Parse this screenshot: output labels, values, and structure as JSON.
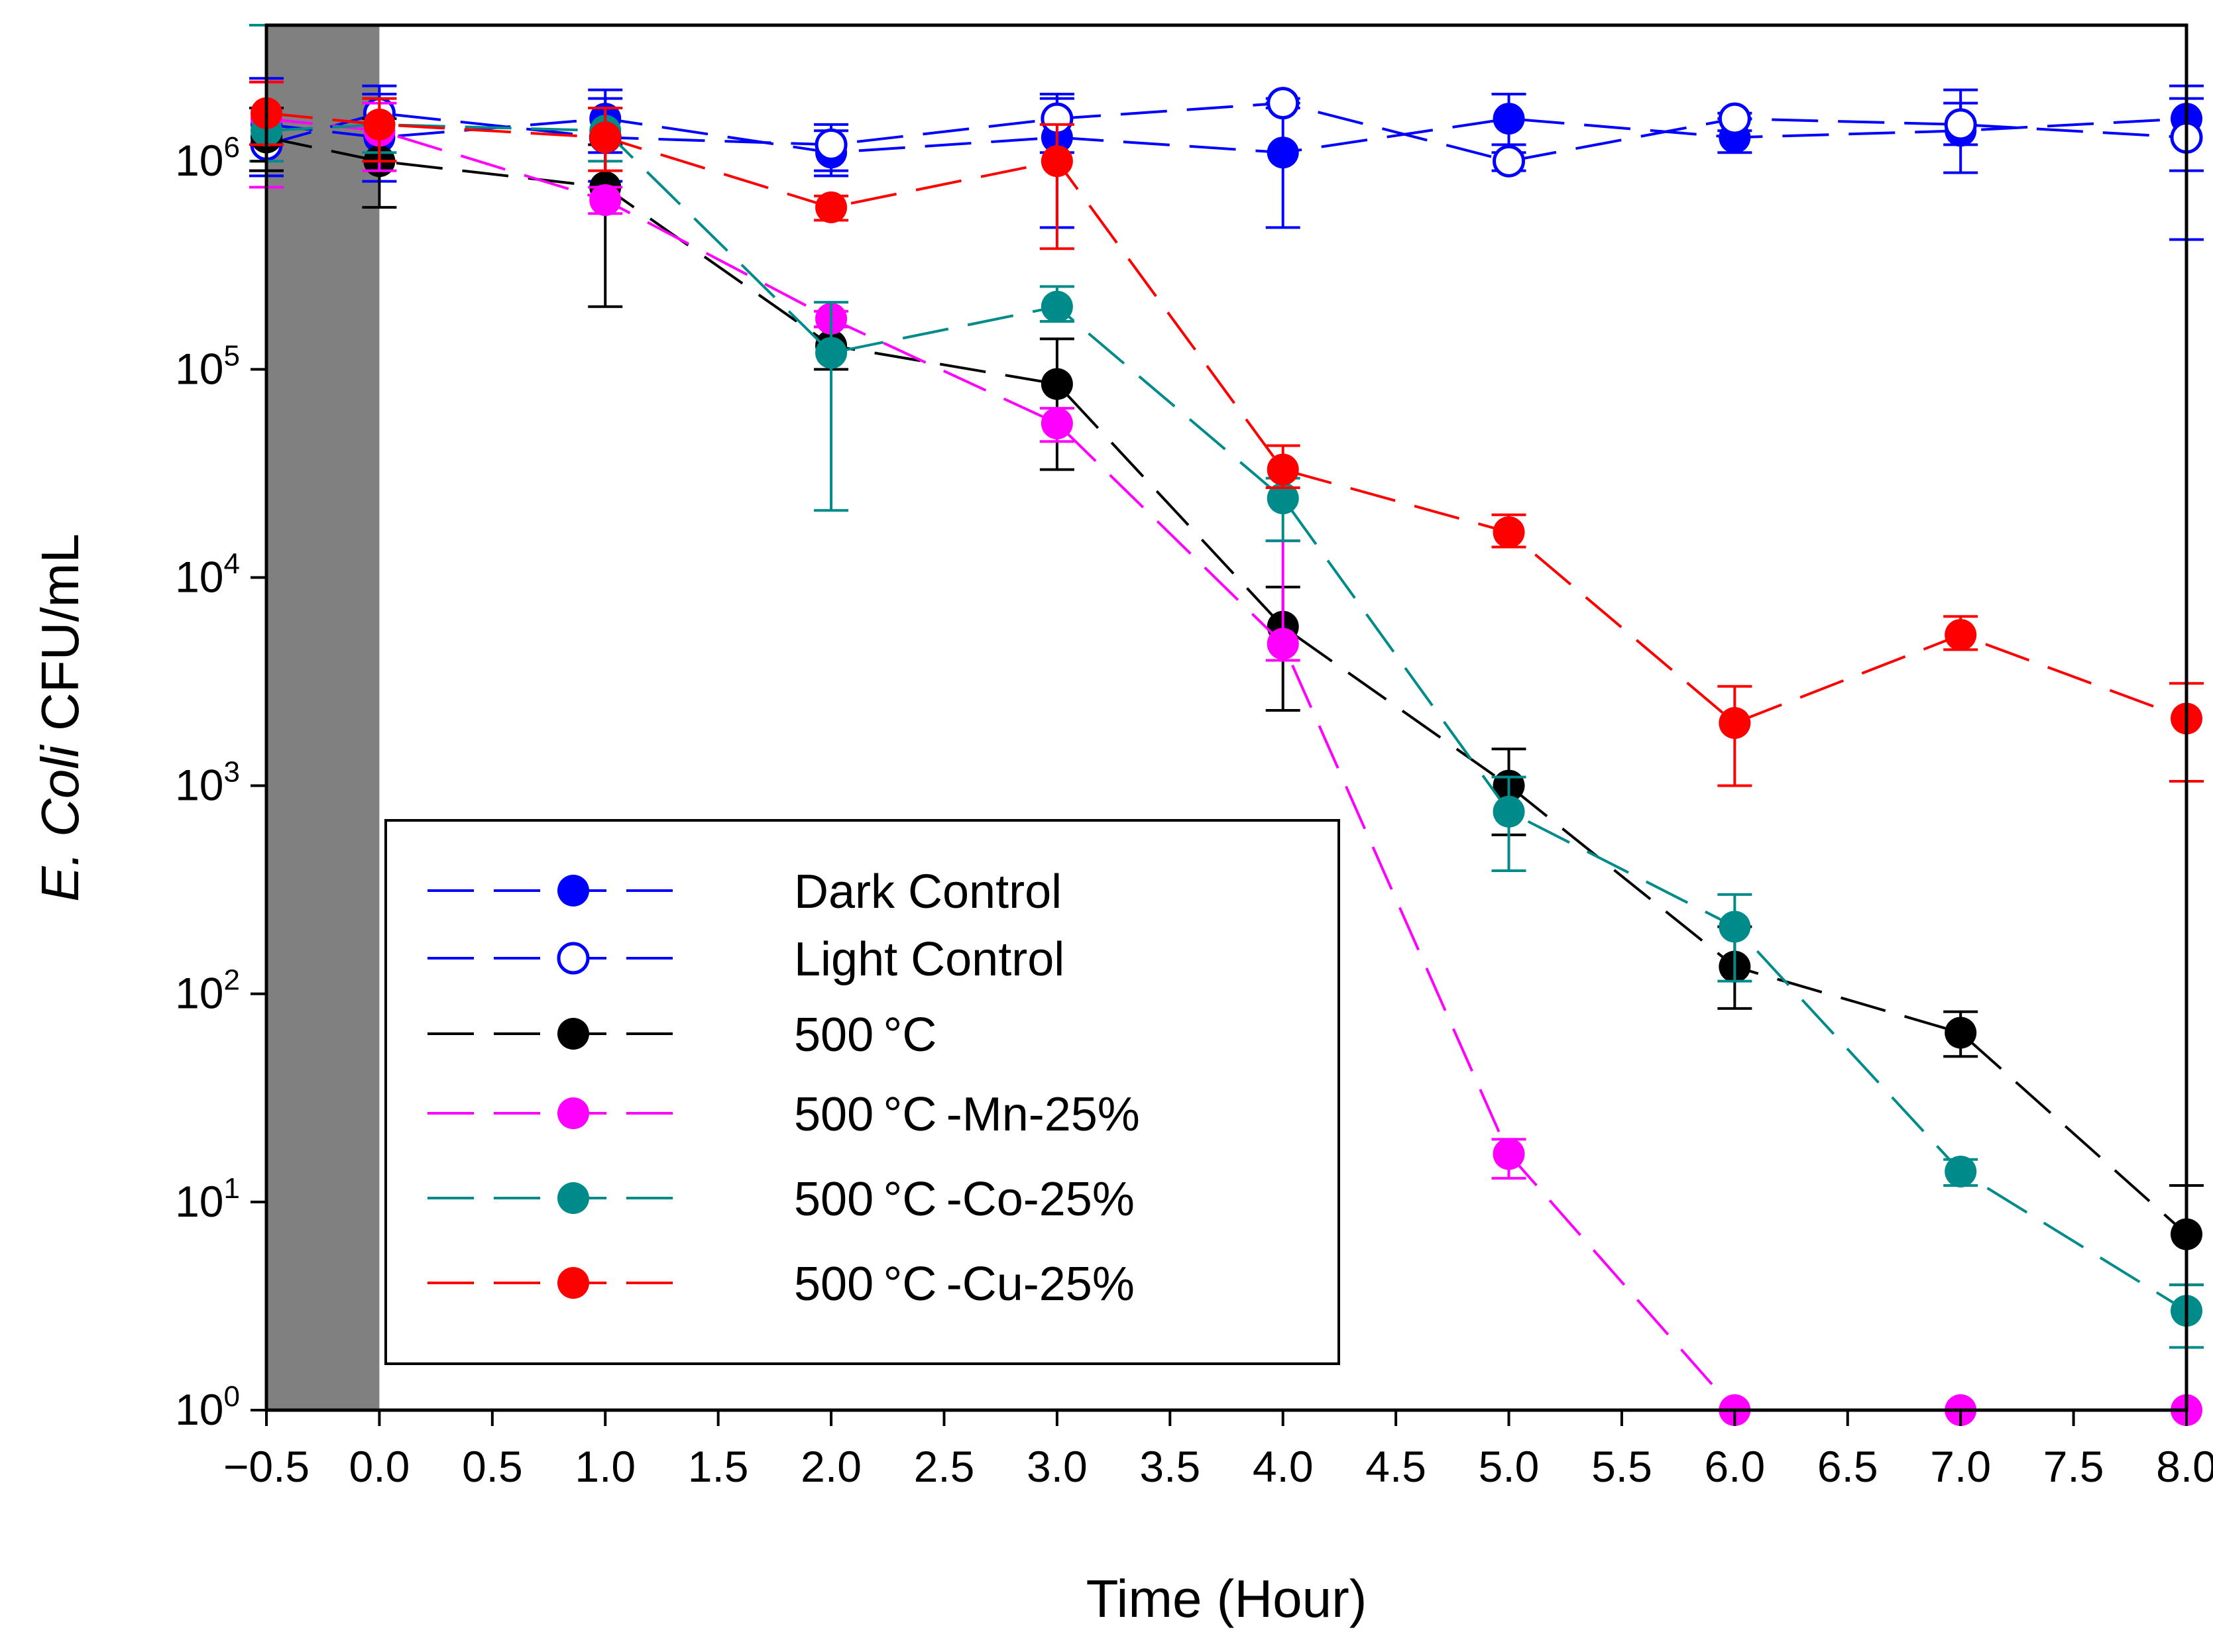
{
  "chart_data": {
    "type": "line",
    "title": "",
    "xlabel": "Time (Hour)",
    "ylabel_italic": "E. Coli",
    "ylabel_rest": " CFU/mL",
    "y_scale": "log",
    "xlim": [
      -0.5,
      8.0
    ],
    "ylim": [
      1,
      4500000
    ],
    "x_ticks": [
      -0.5,
      0.0,
      0.5,
      1.0,
      1.5,
      2.0,
      2.5,
      3.0,
      3.5,
      4.0,
      4.5,
      5.0,
      5.5,
      6.0,
      6.5,
      7.0,
      7.5,
      8.0
    ],
    "x_tick_labels": [
      "−0.5",
      "0.0",
      "0.5",
      "1.0",
      "1.5",
      "2.0",
      "2.5",
      "3.0",
      "3.5",
      "4.0",
      "4.5",
      "5.0",
      "5.5",
      "6.0",
      "6.5",
      "7.0",
      "7.5",
      "8.0"
    ],
    "y_ticks": [
      1,
      10,
      100,
      1000,
      10000,
      100000,
      1000000
    ],
    "y_tick_base": "10",
    "y_tick_exponents": [
      "0",
      "1",
      "2",
      "3",
      "4",
      "5",
      "6"
    ],
    "dark_period": {
      "from": -0.5,
      "to": 0.0,
      "color": "#808080"
    },
    "legend": {
      "position": "lower-left",
      "entries": [
        "Dark Control",
        "Light Control",
        "500 °C",
        "500 °C -Mn-25%",
        "500 °C -Co-25%",
        "500 °C -Cu-25%"
      ]
    },
    "series": [
      {
        "name": "Dark Control",
        "color": "#0000ff",
        "marker": "filled-circle",
        "x": [
          -0.5,
          0.0,
          1.0,
          2.0,
          3.0,
          4.0,
          5.0,
          6.0,
          7.0,
          8.0
        ],
        "y": [
          1500000,
          1300000,
          1600000,
          1100000,
          1300000,
          1100000,
          1600000,
          1300000,
          1400000,
          1600000
        ],
        "err_low": [
          900000,
          800000,
          1100000,
          850000,
          480000,
          480000,
          1200000,
          1100000,
          880000,
          900000
        ],
        "err_high": [
          2500000,
          2300000,
          2200000,
          1500000,
          2000000,
          1900000,
          2100000,
          1600000,
          2200000,
          2300000
        ]
      },
      {
        "name": "Light Control",
        "color": "#0000ff",
        "marker": "open-circle",
        "x": [
          -0.5,
          0.0,
          1.0,
          2.0,
          3.0,
          4.0,
          5.0,
          6.0,
          7.0,
          8.0
        ],
        "y": [
          1200000,
          1700000,
          1300000,
          1200000,
          1600000,
          1900000,
          1000000,
          1600000,
          1500000,
          1300000
        ],
        "err_low": [
          850000,
          1000000,
          800000,
          900000,
          1100000,
          1800000,
          900000,
          1400000,
          1200000,
          420000
        ],
        "err_high": [
          1800000,
          2100000,
          2000000,
          1400000,
          2100000,
          2000000,
          1100000,
          1700000,
          1900000,
          2000000
        ]
      },
      {
        "name": "500 °C",
        "color": "#000000",
        "marker": "filled-circle",
        "x": [
          -0.5,
          0.0,
          1.0,
          2.0,
          3.0,
          4.0,
          5.0,
          6.0,
          7.0,
          8.0
        ],
        "y": [
          1300000,
          1000000,
          750000,
          130000,
          85000,
          5800,
          1000,
          135,
          65,
          7
        ],
        "err_low": [
          900000,
          600000,
          200000,
          100000,
          33000,
          2300,
          580,
          85,
          50,
          4
        ],
        "err_high": [
          1800000,
          1600000,
          1200000,
          160000,
          140000,
          9000,
          1500,
          210,
          82,
          12
        ]
      },
      {
        "name": "500 °C -Mn-25%",
        "color": "#ff00ff",
        "marker": "filled-circle",
        "x": [
          -0.5,
          0.0,
          1.0,
          2.0,
          3.0,
          4.0,
          5.0,
          6.0,
          7.0,
          8.0
        ],
        "y": [
          1600000,
          1400000,
          650000,
          175000,
          55000,
          4800,
          17,
          1,
          1,
          1
        ],
        "err_low": [
          750000,
          900000,
          560000,
          160000,
          45000,
          4000,
          13,
          1,
          1,
          1
        ],
        "err_high": [
          2400000,
          1900000,
          750000,
          190000,
          65000,
          15000,
          20,
          1,
          1,
          1
        ]
      },
      {
        "name": "500 °C -Co-25%",
        "color": "#008b8b",
        "marker": "filled-circle",
        "x": [
          -0.5,
          0.0,
          1.0,
          2.0,
          3.0,
          4.0,
          5.0,
          6.0,
          7.0,
          8.0
        ],
        "y": [
          1400000,
          1500000,
          1400000,
          120000,
          200000,
          24000,
          750,
          210,
          14,
          3
        ],
        "err_low": [
          1000000,
          1100000,
          1000000,
          21000,
          170000,
          15000,
          390,
          115,
          12,
          2
        ],
        "err_high": [
          4500000,
          2000000,
          1800000,
          210000,
          250000,
          30000,
          1100,
          300,
          16,
          4
        ]
      },
      {
        "name": "500 °C -Cu-25%",
        "color": "#ff0000",
        "marker": "filled-circle",
        "x": [
          -0.5,
          0.0,
          1.0,
          2.0,
          3.0,
          4.0,
          5.0,
          6.0,
          7.0,
          8.0
        ],
        "y": [
          1700000,
          1500000,
          1300000,
          600000,
          1000000,
          33000,
          16500,
          2000,
          5300,
          2100
        ],
        "err_low": [
          1200000,
          1000000,
          900000,
          520000,
          380000,
          27000,
          14000,
          1000,
          4500,
          1050
        ],
        "err_high": [
          2400000,
          2000000,
          1800000,
          680000,
          1500000,
          43000,
          20000,
          3000,
          6500,
          3100
        ]
      }
    ]
  }
}
